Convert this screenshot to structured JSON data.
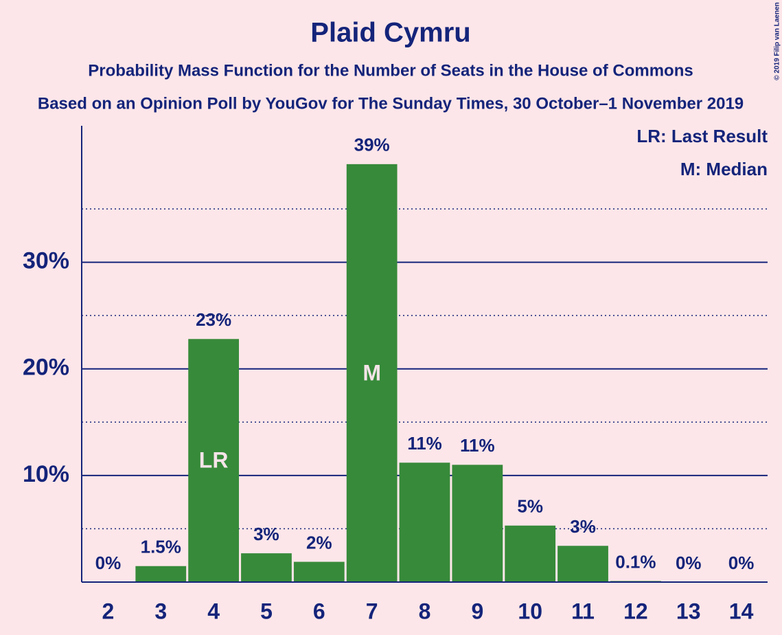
{
  "chart_data": {
    "type": "bar",
    "title": "Plaid Cymru",
    "subtitle": "Probability Mass Function for the Number of Seats in the House of Commons",
    "subtitle2": "Based on an Opinion Poll by YouGov for The Sunday Times, 30 October–1 November 2019",
    "copyright": "© 2019 Filip van Laenen",
    "categories": [
      "2",
      "3",
      "4",
      "5",
      "6",
      "7",
      "8",
      "9",
      "10",
      "11",
      "12",
      "13",
      "14"
    ],
    "values": [
      0,
      1.5,
      22.8,
      2.7,
      1.9,
      39.2,
      11.2,
      11.0,
      5.3,
      3.4,
      0.1,
      0,
      0
    ],
    "value_labels": [
      "0%",
      "1.5%",
      "23%",
      "3%",
      "2%",
      "39%",
      "11%",
      "11%",
      "5%",
      "3%",
      "0.1%",
      "0%",
      "0%"
    ],
    "color": "#378a3a",
    "ylim": [
      0,
      42.8
    ],
    "yticks": [
      {
        "value": 10,
        "label": "10%"
      },
      {
        "value": 20,
        "label": "20%"
      },
      {
        "value": 30,
        "label": "30%"
      }
    ],
    "minor_yticks": [
      5,
      15,
      25,
      35
    ],
    "grid": true,
    "annotations": [
      {
        "label": "LR",
        "category": "4"
      },
      {
        "label": "M",
        "category": "7"
      }
    ],
    "legend": [
      "LR: Last Result",
      "M: Median"
    ],
    "legend_position": "top-right"
  }
}
